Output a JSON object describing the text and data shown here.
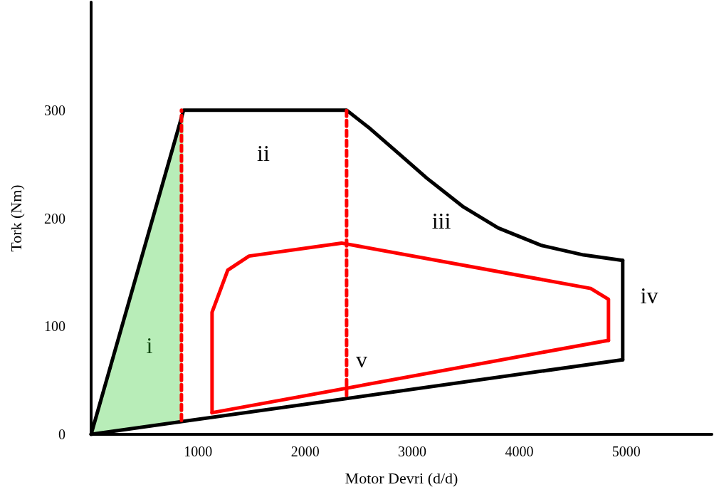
{
  "chart_data": {
    "type": "line",
    "xlabel": "Motor Devri (d/d)",
    "ylabel": "Tork (Nm)",
    "xlim": [
      0,
      5800
    ],
    "xticks": [
      1000,
      2000,
      3000,
      4000,
      5000
    ],
    "ylim": [
      0,
      400
    ],
    "yticks": [
      0,
      100,
      200,
      300
    ],
    "grid": false,
    "marker": "none",
    "series": [
      {
        "type": "area",
        "color": "#33cc33",
        "x": [
          0,
          864,
          844,
          0
        ],
        "values": [
          0,
          300,
          13,
          0
        ]
      },
      {
        "color": "#000000",
        "line_style": "solid",
        "x": [
          0,
          864,
          2387,
          2606,
          2872,
          3138,
          3471,
          3803,
          4202,
          4601,
          4967
        ],
        "values": [
          0,
          300,
          300,
          283,
          260,
          237,
          211,
          191,
          175,
          166,
          161
        ]
      },
      {
        "color": "#000000",
        "line_style": "solid",
        "x": [
          4967,
          4967
        ],
        "values": [
          161,
          69
        ]
      },
      {
        "color": "#000000",
        "line_style": "solid",
        "x": [
          0,
          4967
        ],
        "values": [
          0,
          69
        ]
      },
      {
        "color": "#ff0000",
        "line_style": "dashed",
        "x": [
          844,
          844
        ],
        "values": [
          13,
          300
        ]
      },
      {
        "color": "#ff0000",
        "line_style": "dashed",
        "x": [
          2387,
          2387
        ],
        "values": [
          36,
          300
        ]
      },
      {
        "color": "#ff0000",
        "line_style": "solid",
        "x": [
          1130,
          1130,
          1277,
          1476,
          2340,
          4668,
          4834,
          4834
        ],
        "values": [
          20,
          113,
          152,
          165,
          177,
          135,
          125,
          87
        ]
      },
      {
        "color": "#ff0000",
        "line_style": "solid",
        "x": [
          1130,
          4834
        ],
        "values": [
          20,
          87
        ]
      }
    ],
    "annotations": [
      "i",
      "ii",
      "iii",
      "iv",
      "v"
    ]
  }
}
